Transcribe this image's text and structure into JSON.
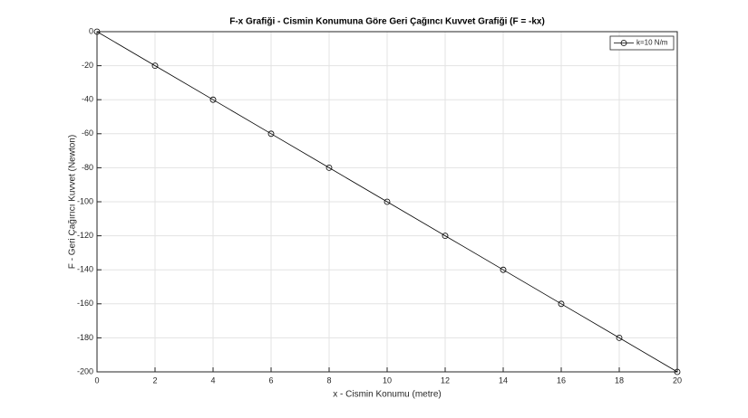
{
  "chart_data": {
    "type": "line",
    "title": "F-x Grafiği - Cismin Konumuna Göre Geri Çağıncı Kuvvet Grafiği (F = -kx)",
    "x_label": "x - Cismin Konumu (metre)",
    "y_label": "F - Geri Çağırıcı Kuvvet (Newton)",
    "x": [
      0,
      2,
      4,
      6,
      8,
      10,
      12,
      14,
      16,
      18,
      20
    ],
    "series": [
      {
        "name": "k=10 N/m",
        "color": "#000000",
        "values": [
          0,
          -20,
          -40,
          -60,
          -80,
          -100,
          -120,
          -140,
          -160,
          -180,
          -200
        ]
      }
    ],
    "xlim": [
      0,
      20
    ],
    "xticks": [
      0,
      2,
      4,
      6,
      8,
      10,
      12,
      14,
      16,
      18,
      20
    ],
    "ylim": [
      -200,
      0
    ],
    "yticks": [
      -200,
      -180,
      -160,
      -140,
      -120,
      -100,
      -80,
      -60,
      -40,
      -20,
      0
    ],
    "grid": true,
    "legend": "top-right"
  }
}
